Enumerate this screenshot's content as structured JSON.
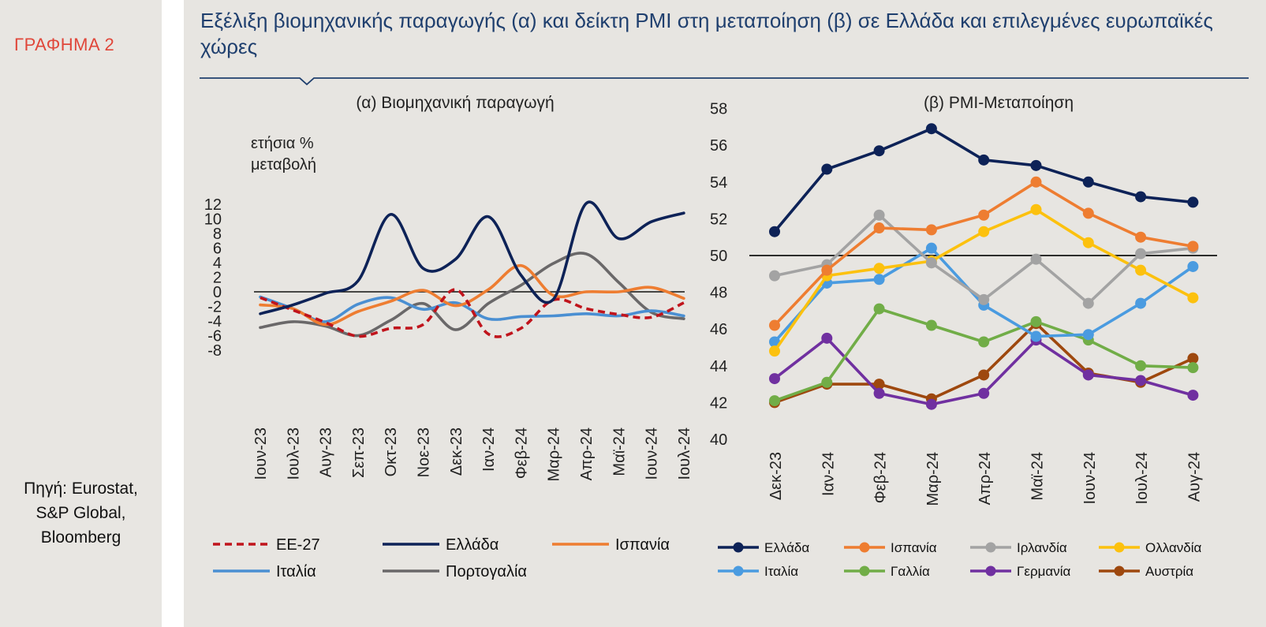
{
  "page": {
    "label": "ΓΡΑΦΗΜΑ 2",
    "title": "Εξέλιξη βιομηχανικής παραγωγής (α) και δείκτη  PMI στη μεταποίηση (β) σε Ελλάδα και επιλεγμένες ευρωπαϊκές χώρες",
    "source_lines": [
      "Πηγή: Eurostat,",
      "S&P Global,",
      "Bloomberg"
    ]
  },
  "chart_data": [
    {
      "type": "line",
      "title": "(α) Βιομηχανική παραγωγή",
      "ylabel_lines": [
        "ετήσια %",
        "μεταβολή"
      ],
      "xlabel": "",
      "ylim": [
        -8,
        12
      ],
      "yticks": [
        -8,
        -6,
        -4,
        -2,
        0,
        2,
        4,
        6,
        8,
        10,
        12
      ],
      "categories": [
        "Ιουν-23",
        "Ιουλ-23",
        "Αυγ-23",
        "Σεπ-23",
        "Οκτ-23",
        "Νοε-23",
        "Δεκ-23",
        "Ιαν-24",
        "Φεβ-24",
        "Μαρ-24",
        "Απρ-24",
        "Μαϊ-24",
        "Ιουν-24",
        "Ιουλ-24"
      ],
      "smooth": true,
      "series": [
        {
          "name": "ΕΕ-27",
          "color": "#c0141c",
          "dashed": true,
          "values": [
            -0.8,
            -2.5,
            -4.2,
            -6.1,
            -5.0,
            -4.5,
            0.3,
            -5.8,
            -5.0,
            -1.1,
            -2.3,
            -3.1,
            -3.5,
            -1.5
          ]
        },
        {
          "name": "Ελλάδα",
          "color": "#0d2257",
          "dashed": false,
          "values": [
            -3.0,
            -1.8,
            -0.2,
            1.5,
            10.6,
            3.2,
            4.5,
            10.3,
            2.3,
            -1.0,
            12.1,
            7.3,
            9.6,
            10.8
          ]
        },
        {
          "name": "Ισπανία",
          "color": "#ee7d31",
          "dashed": false,
          "values": [
            -1.8,
            -2.3,
            -4.5,
            -2.7,
            -1.3,
            0.2,
            -1.9,
            0.3,
            3.6,
            -0.5,
            0.0,
            0.0,
            0.6,
            -0.9
          ]
        },
        {
          "name": "Ιταλία",
          "color": "#4a8fd2",
          "dashed": false,
          "values": [
            -0.7,
            -2.3,
            -4.1,
            -1.7,
            -0.8,
            -2.4,
            -1.5,
            -3.7,
            -3.4,
            -3.3,
            -3.0,
            -3.3,
            -2.6,
            -3.3
          ]
        },
        {
          "name": "Πορτογαλία",
          "color": "#6a6869",
          "dashed": false,
          "values": [
            -4.9,
            -4.1,
            -4.7,
            -6.0,
            -3.9,
            -1.6,
            -5.2,
            -1.6,
            0.9,
            3.9,
            5.2,
            1.3,
            -2.8,
            -3.7
          ]
        }
      ]
    },
    {
      "type": "line",
      "title": "(β) PMI-Μεταποίηση",
      "xlabel": "",
      "ylim": [
        40,
        58
      ],
      "yticks": [
        40,
        42,
        44,
        46,
        48,
        50,
        52,
        54,
        56,
        58
      ],
      "reference_line": 50,
      "categories": [
        "Δεκ-23",
        "Ιαν-24",
        "Φεβ-24",
        "Μαρ-24",
        "Απρ-24",
        "Μαϊ-24",
        "Ιουν-24",
        "Ιουλ-24",
        "Αυγ-24"
      ],
      "markers": true,
      "series": [
        {
          "name": "Ελλάδα",
          "color": "#0d2257",
          "values": [
            51.3,
            54.7,
            55.7,
            56.9,
            55.2,
            54.9,
            54.0,
            53.2,
            52.9
          ]
        },
        {
          "name": "Ισπανία",
          "color": "#ee7d31",
          "values": [
            46.2,
            49.2,
            51.5,
            51.4,
            52.2,
            54.0,
            52.3,
            51.0,
            50.5
          ]
        },
        {
          "name": "Ιρλανδία",
          "color": "#a3a3a3",
          "values": [
            48.9,
            49.5,
            52.2,
            49.6,
            47.6,
            49.8,
            47.4,
            50.1,
            50.4
          ]
        },
        {
          "name": "Ολλανδία",
          "color": "#fcc10e",
          "values": [
            44.8,
            48.9,
            49.3,
            49.7,
            51.3,
            52.5,
            50.7,
            49.2,
            47.7
          ]
        },
        {
          "name": "Ιταλία",
          "color": "#4a9be0",
          "values": [
            45.3,
            48.5,
            48.7,
            50.4,
            47.3,
            45.6,
            45.7,
            47.4,
            49.4
          ]
        },
        {
          "name": "Γαλλία",
          "color": "#71ad47",
          "values": [
            42.1,
            43.1,
            47.1,
            46.2,
            45.3,
            46.4,
            45.4,
            44.0,
            43.9
          ]
        },
        {
          "name": "Γερμανία",
          "color": "#7030a0",
          "values": [
            43.3,
            45.5,
            42.5,
            41.9,
            42.5,
            45.4,
            43.5,
            43.2,
            42.4
          ]
        },
        {
          "name": "Αυστρία",
          "color": "#9e480e",
          "values": [
            42.0,
            43.0,
            43.0,
            42.2,
            43.5,
            46.3,
            43.6,
            43.1,
            44.4
          ]
        }
      ]
    }
  ]
}
